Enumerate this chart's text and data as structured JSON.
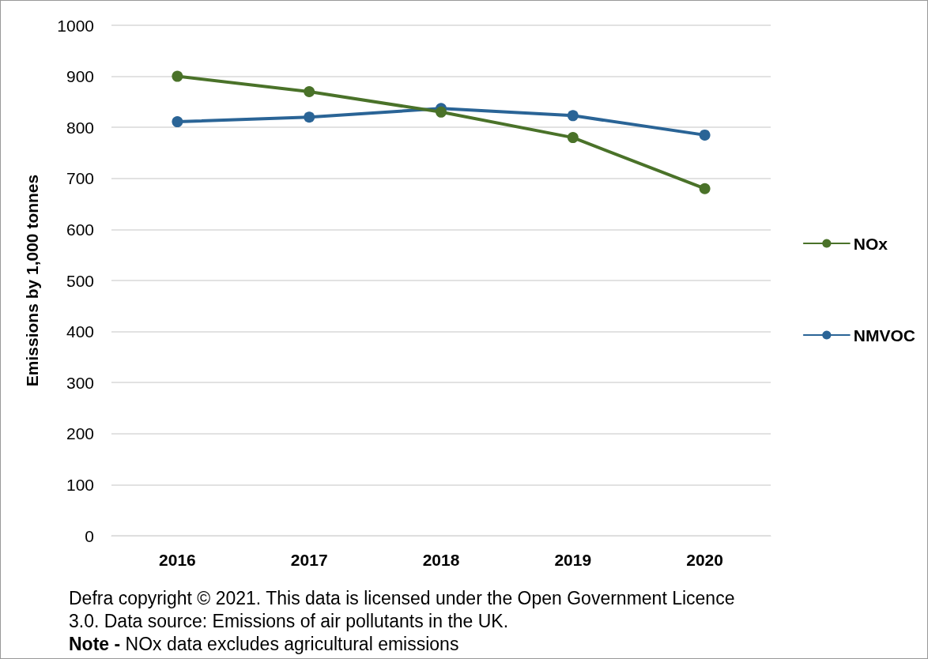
{
  "chart_data": {
    "type": "line",
    "ylabel": "Emissions by 1,000 tonnes",
    "categories": [
      "2016",
      "2017",
      "2018",
      "2019",
      "2020"
    ],
    "series": [
      {
        "name": "NOx",
        "color": "#4a7229",
        "values": [
          900,
          870,
          830,
          780,
          680
        ]
      },
      {
        "name": "NMVOC",
        "color": "#2a6496",
        "values": [
          811,
          820,
          837,
          823,
          785
        ]
      }
    ],
    "ylim": [
      0,
      1000
    ],
    "yticks": [
      0,
      100,
      200,
      300,
      400,
      500,
      600,
      700,
      800,
      900,
      1000
    ],
    "grid": "y",
    "legend": "right",
    "marker": "circle",
    "line_style": "solid",
    "annotations": [
      "Defra copyright © 2021. This data is licensed under the Open Government Licence 3.0. Data source: Emissions of air pollutants in the UK.",
      "Note -",
      "NOx data excludes agricultural emissions"
    ]
  }
}
